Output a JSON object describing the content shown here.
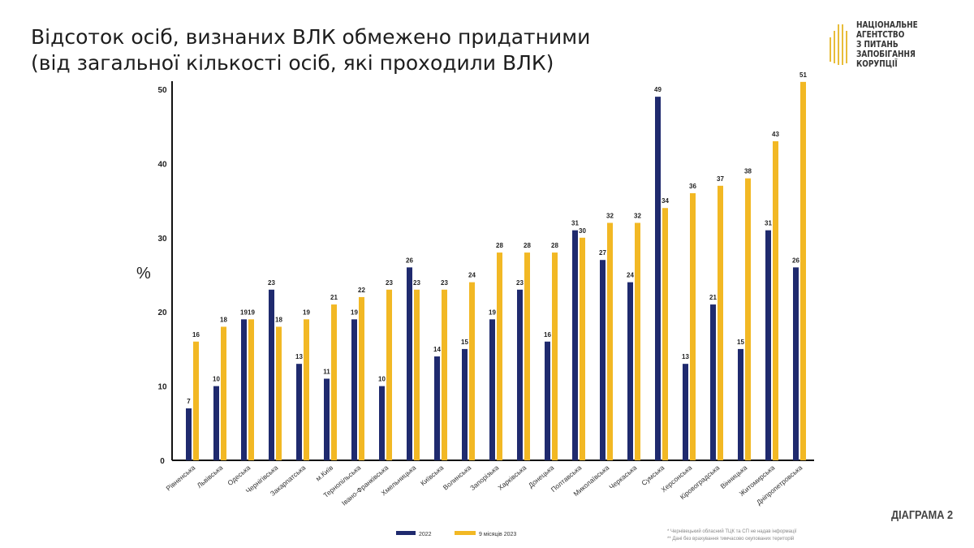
{
  "title_line1": "Відсоток осіб, визнаних ВЛК обмежено придатними",
  "title_line2": "(від загальної кількості осіб, які проходили ВЛК)",
  "logo": {
    "line1": "НАЦІОНАЛЬНЕ АГЕНТСТВО",
    "line2": "З ПИТАНЬ ЗАПОБІГАННЯ",
    "line3": "КОРУПЦІЇ"
  },
  "diagram_label": "ДІАГРАМА 2",
  "footnotes": [
    "* Чернівецький обласний ТЦК та СП не надав інформації",
    "** Дані без врахування тимчасово окупованих територій"
  ],
  "chart_data": {
    "type": "bar",
    "ylabel": "%",
    "ylim": [
      0,
      50
    ],
    "yticks": [
      0,
      10,
      20,
      30,
      40,
      50
    ],
    "grid": false,
    "legend": "bottom",
    "categories": [
      "Рівненська",
      "Львівська",
      "Одеська",
      "Чернігівська",
      "Закарпатська",
      "м.Київ",
      "Тернопільська",
      "Івано-Франківська",
      "Хмельницька",
      "Київська",
      "Волинська",
      "Запорізька",
      "Харківська",
      "Донецька",
      "Полтавська",
      "Миколаївська",
      "Черкаська",
      "Сумська",
      "Херсонська",
      "Кіровоградська",
      "Вінницька",
      "Житомирська",
      "Дніпропетровська"
    ],
    "series": [
      {
        "name": "2022",
        "color": "#1f2a6e",
        "values": [
          7,
          10,
          19,
          23,
          13,
          11,
          19,
          10,
          26,
          14,
          15,
          19,
          23,
          16,
          31,
          27,
          24,
          49,
          13,
          21,
          15,
          31,
          26
        ]
      },
      {
        "name": "9 місяців 2023",
        "color": "#f2b824",
        "values": [
          16,
          18,
          19,
          18,
          19,
          21,
          22,
          23,
          23,
          23,
          24,
          28,
          28,
          28,
          30,
          32,
          32,
          34,
          36,
          37,
          38,
          43,
          51
        ]
      }
    ]
  }
}
